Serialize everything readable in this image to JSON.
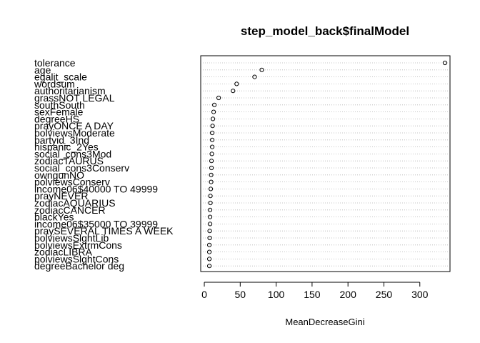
{
  "chart_data": {
    "type": "scatter",
    "variant": "dotchart",
    "title": "step_model_back$finalModel",
    "xlabel": "MeanDecreaseGini",
    "ylabel": "",
    "xlim": [
      -5,
      342
    ],
    "xticks": [
      0,
      50,
      100,
      150,
      200,
      250,
      300
    ],
    "grid": "dotted horizontal lines",
    "legend": "none",
    "point_color": "#000000",
    "categories": [
      "tolerance",
      "age",
      "egalit_scale",
      "wordsum",
      "authoritarianism",
      "grassNOT LEGAL",
      "southSouth",
      "sexFemale",
      "degreeHS",
      "prayONCE A DAY",
      "polviewsModerate",
      "partyid_3Ind",
      "hispanic_2Yes",
      "social_cons3Mod",
      "zodiacTAURUS",
      "social_cons3Conserv",
      "owngunNO",
      "polviewsConserv",
      "income06$40000 TO 49999",
      "prayNEVER",
      "zodiacAQUARIUS",
      "zodiacCANCER",
      "blackYes",
      "income06$35000 TO 39999",
      "praySEVERAL TIMES A WEEK",
      "polviewsSlghtLib",
      "polviewsExtrmCons",
      "zodiacLIBRA",
      "polviewsSlghtCons",
      "degreeBachelor deg"
    ],
    "values": [
      335,
      80,
      70,
      45,
      40,
      20,
      14,
      13,
      12,
      11.5,
      11,
      11,
      11,
      10.5,
      10,
      10,
      9.5,
      9.5,
      9,
      8.5,
      8.5,
      8,
      8,
      8,
      7.5,
      7.5,
      7,
      7,
      7,
      7
    ]
  }
}
